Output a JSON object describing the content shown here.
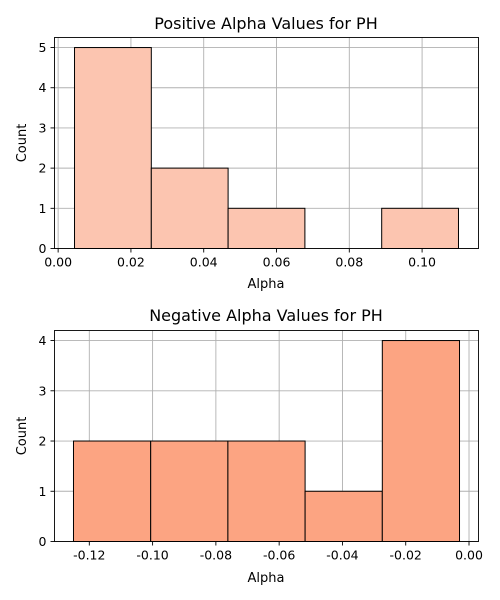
{
  "chart_data": [
    {
      "type": "bar",
      "title": "Positive Alpha Values for PH",
      "xlabel": "Alpha",
      "ylabel": "Count",
      "bin_edges": [
        0.0045,
        0.0256,
        0.0467,
        0.0678,
        0.0889,
        0.11
      ],
      "values": [
        5,
        2,
        1,
        0,
        1
      ],
      "xlim": [
        -0.001,
        0.1155
      ],
      "ylim": [
        0,
        5.25
      ],
      "xticks": [
        0.0,
        0.02,
        0.04,
        0.06,
        0.08,
        0.1
      ],
      "xtick_labels": [
        "0.00",
        "0.02",
        "0.04",
        "0.06",
        "0.08",
        "0.10"
      ],
      "yticks": [
        0,
        1,
        2,
        3,
        4,
        5
      ],
      "ytick_labels": [
        "0",
        "1",
        "2",
        "3",
        "4",
        "5"
      ],
      "bar_color": "#fcc5b0",
      "grid": true
    },
    {
      "type": "bar",
      "title": "Negative Alpha Values for PH",
      "xlabel": "Alpha",
      "ylabel": "Count",
      "bin_edges": [
        -0.125,
        -0.1006,
        -0.0762,
        -0.0518,
        -0.0274,
        -0.003
      ],
      "values": [
        2,
        2,
        2,
        1,
        4
      ],
      "xlim": [
        -0.131,
        0.003
      ],
      "ylim": [
        0,
        4.2
      ],
      "xticks": [
        -0.12,
        -0.1,
        -0.08,
        -0.06,
        -0.04,
        -0.02,
        0.0
      ],
      "xtick_labels": [
        "-0.12",
        "-0.10",
        "-0.08",
        "-0.06",
        "-0.04",
        "-0.02",
        "0.00"
      ],
      "yticks": [
        0,
        1,
        2,
        3,
        4
      ],
      "ytick_labels": [
        "0",
        "1",
        "2",
        "3",
        "4"
      ],
      "bar_color": "#fca482",
      "grid": true
    }
  ]
}
